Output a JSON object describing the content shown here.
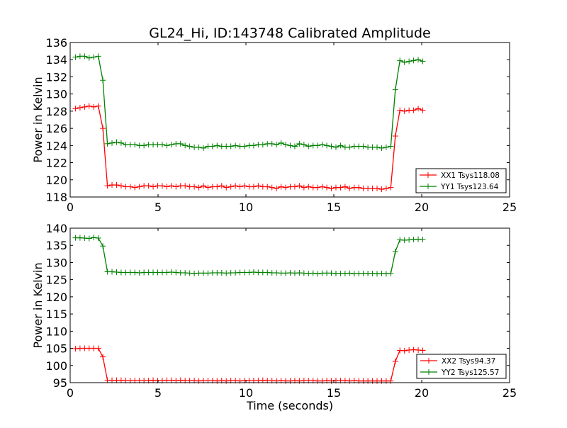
{
  "chart_data": [
    {
      "type": "line",
      "title": "GL24_Hi, ID:143748 Calibrated Amplitude",
      "xlabel": "",
      "ylabel": "Power in Kelvin",
      "xlim": [
        0,
        25
      ],
      "ylim": [
        118,
        136
      ],
      "xticks": [
        "0",
        "5",
        "10",
        "15",
        "20",
        "25"
      ],
      "yticks": [
        "118",
        "120",
        "122",
        "124",
        "126",
        "128",
        "130",
        "132",
        "134",
        "136"
      ],
      "grid": false,
      "legend_position": "lower-right",
      "x": {
        "start": 0.3,
        "step": 0.26
      },
      "series": [
        {
          "name": "XX1 Tsys118.08",
          "color": "#ff0000",
          "marker": "+",
          "values": [
            128.3,
            128.4,
            128.5,
            128.6,
            128.5,
            128.6,
            126.0,
            119.3,
            119.4,
            119.4,
            119.3,
            119.2,
            119.2,
            119.1,
            119.2,
            119.3,
            119.3,
            119.2,
            119.3,
            119.3,
            119.2,
            119.3,
            119.2,
            119.3,
            119.3,
            119.2,
            119.2,
            119.1,
            119.3,
            119.1,
            119.2,
            119.2,
            119.3,
            119.1,
            119.2,
            119.3,
            119.2,
            119.3,
            119.2,
            119.2,
            119.3,
            119.2,
            119.2,
            119.1,
            119.0,
            119.2,
            119.1,
            119.2,
            119.2,
            119.3,
            119.1,
            119.2,
            119.1,
            119.1,
            119.2,
            119.1,
            119.0,
            119.1,
            119.1,
            119.2,
            119.0,
            119.1,
            119.1,
            119.0,
            119.0,
            119.0,
            119.0,
            118.9,
            119.0,
            119.1,
            125.1,
            128.1,
            128.0,
            128.1,
            128.1,
            128.3,
            128.1
          ]
        },
        {
          "name": "YY1 Tsys123.64",
          "color": "#008000",
          "marker": "+",
          "values": [
            134.3,
            134.4,
            134.4,
            134.2,
            134.3,
            134.4,
            131.6,
            124.2,
            124.3,
            124.4,
            124.3,
            124.1,
            124.1,
            124.1,
            124.0,
            124.0,
            124.1,
            124.1,
            124.1,
            124.1,
            124.0,
            124.1,
            124.2,
            124.2,
            124.0,
            123.9,
            123.8,
            123.8,
            123.7,
            123.9,
            123.9,
            124.0,
            123.9,
            123.9,
            123.9,
            124.0,
            123.9,
            123.9,
            124.0,
            124.0,
            124.1,
            124.1,
            124.2,
            124.2,
            124.1,
            124.3,
            124.1,
            124.0,
            123.9,
            124.2,
            124.1,
            123.9,
            124.0,
            124.0,
            124.1,
            124.0,
            123.9,
            123.8,
            124.0,
            123.8,
            123.8,
            123.9,
            123.9,
            123.9,
            123.8,
            123.8,
            123.8,
            123.7,
            123.8,
            123.9,
            130.5,
            133.9,
            133.7,
            133.8,
            133.9,
            134.0,
            133.8
          ]
        }
      ]
    },
    {
      "type": "line",
      "title": "",
      "xlabel": "Time (seconds)",
      "ylabel": "Power in Kelvin",
      "xlim": [
        0,
        25
      ],
      "ylim": [
        95,
        140
      ],
      "xticks": [
        "0",
        "5",
        "10",
        "15",
        "20",
        "25"
      ],
      "yticks": [
        "95",
        "100",
        "105",
        "110",
        "115",
        "120",
        "125",
        "130",
        "135",
        "140"
      ],
      "grid": false,
      "legend_position": "lower-right",
      "x": {
        "start": 0.3,
        "step": 0.26
      },
      "series": [
        {
          "name": "XX2 Tsys94.37",
          "color": "#ff0000",
          "marker": "+",
          "values": [
            104.9,
            105.0,
            105.0,
            105.0,
            105.0,
            105.0,
            102.5,
            95.7,
            95.7,
            95.7,
            95.7,
            95.6,
            95.6,
            95.6,
            95.6,
            95.6,
            95.6,
            95.7,
            95.6,
            95.6,
            95.7,
            95.7,
            95.6,
            95.7,
            95.6,
            95.6,
            95.6,
            95.5,
            95.6,
            95.6,
            95.6,
            95.5,
            95.6,
            95.5,
            95.6,
            95.6,
            95.5,
            95.6,
            95.6,
            95.6,
            95.6,
            95.7,
            95.6,
            95.6,
            95.5,
            95.6,
            95.5,
            95.5,
            95.6,
            95.5,
            95.6,
            95.6,
            95.6,
            95.5,
            95.5,
            95.6,
            95.5,
            95.6,
            95.6,
            95.6,
            95.5,
            95.6,
            95.5,
            95.5,
            95.5,
            95.5,
            95.5,
            95.5,
            95.5,
            95.5,
            101.2,
            104.4,
            104.3,
            104.5,
            104.6,
            104.5,
            104.4
          ]
        },
        {
          "name": "YY2 Tsys125.57",
          "color": "#008000",
          "marker": "+",
          "values": [
            137.2,
            137.2,
            137.1,
            137.0,
            137.3,
            137.1,
            134.8,
            127.3,
            127.3,
            127.2,
            127.1,
            127.1,
            127.1,
            127.1,
            127.0,
            127.1,
            127.1,
            127.1,
            127.1,
            127.1,
            127.1,
            127.2,
            127.1,
            127.0,
            127.0,
            126.9,
            126.8,
            126.9,
            126.9,
            126.9,
            127.0,
            127.0,
            127.0,
            126.9,
            127.0,
            127.0,
            127.1,
            127.1,
            127.1,
            127.2,
            127.1,
            127.1,
            127.1,
            127.0,
            127.0,
            126.9,
            126.9,
            127.0,
            126.9,
            127.0,
            126.9,
            126.8,
            126.9,
            126.7,
            126.9,
            126.9,
            126.9,
            126.8,
            126.8,
            126.8,
            126.9,
            126.7,
            126.8,
            126.8,
            126.8,
            126.8,
            126.7,
            126.8,
            126.7,
            126.8,
            133.2,
            136.6,
            136.5,
            136.6,
            136.7,
            136.8,
            136.7
          ]
        }
      ]
    }
  ]
}
